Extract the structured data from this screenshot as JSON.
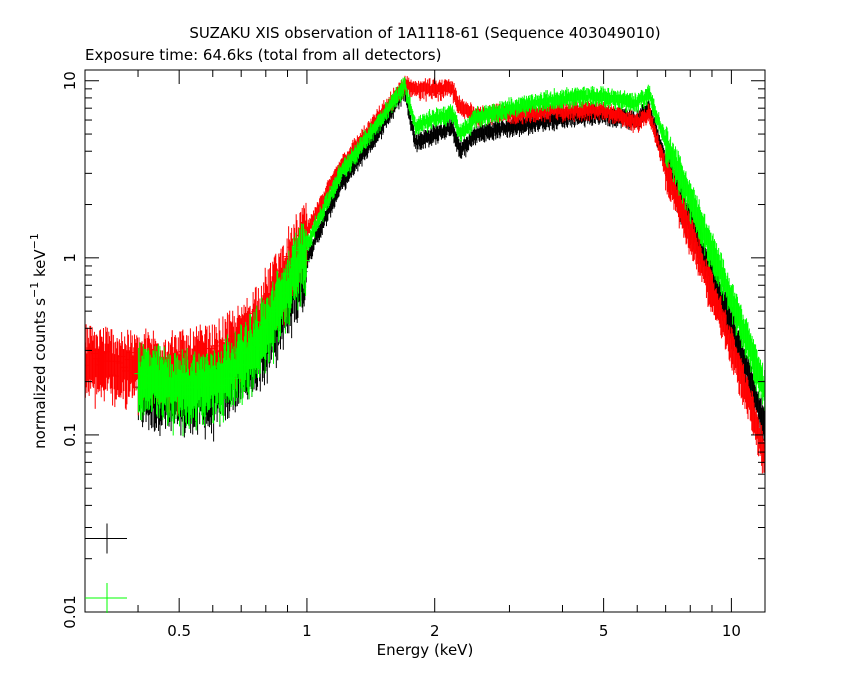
{
  "chart_data": {
    "type": "scatter",
    "title": "SUZAKU XIS observation of 1A1118-61 (Sequence 403049010)",
    "subtitle": "Exposure time: 64.6ks (total from all detectors)",
    "xlabel": "Energy (keV)",
    "ylabel_main": "normalized counts s",
    "ylabel_sup1": "−1",
    "ylabel_mid": " keV",
    "ylabel_sup2": "−1",
    "xscale": "log",
    "yscale": "log",
    "xlim": [
      0.3,
      12
    ],
    "ylim": [
      0.01,
      11.5
    ],
    "x_ticks": [
      {
        "value": 0.5,
        "label": "0.5"
      },
      {
        "value": 1,
        "label": "1"
      },
      {
        "value": 2,
        "label": "2"
      },
      {
        "value": 5,
        "label": "5"
      },
      {
        "value": 10,
        "label": "10"
      }
    ],
    "y_ticks": [
      {
        "value": 0.01,
        "label": "0.01"
      },
      {
        "value": 0.1,
        "label": "0.1"
      },
      {
        "value": 1,
        "label": "1"
      },
      {
        "value": 10,
        "label": "10"
      }
    ],
    "series": [
      {
        "color": "#000000",
        "x_start": 0.4,
        "x": [
          0.4,
          0.5,
          0.6,
          0.7,
          0.8,
          0.9,
          1.0,
          1.2,
          1.5,
          1.7,
          1.8,
          2.0,
          2.2,
          2.3,
          2.5,
          3.0,
          4.0,
          5.0,
          6.0,
          6.4,
          7.0,
          8.0,
          9.0,
          10.0,
          11.0,
          12.0
        ],
        "y": [
          0.2,
          0.17,
          0.18,
          0.25,
          0.35,
          0.6,
          1.0,
          2.6,
          5.5,
          9.0,
          4.5,
          5.0,
          5.5,
          4.0,
          5.0,
          5.5,
          6.2,
          6.5,
          6.0,
          7.0,
          3.5,
          1.6,
          0.8,
          0.42,
          0.22,
          0.11
        ]
      },
      {
        "color": "#ff0000",
        "x_start": 0.3,
        "x": [
          0.3,
          0.4,
          0.5,
          0.6,
          0.7,
          0.8,
          0.9,
          1.0,
          1.2,
          1.5,
          1.7,
          1.8,
          2.0,
          2.2,
          2.3,
          2.5,
          3.0,
          4.0,
          5.0,
          6.0,
          6.4,
          7.0,
          8.0,
          9.0,
          10.0,
          11.0,
          12.0
        ],
        "y": [
          0.27,
          0.25,
          0.25,
          0.27,
          0.35,
          0.55,
          0.9,
          1.4,
          3.3,
          6.5,
          9.5,
          9.0,
          9.0,
          9.0,
          7.0,
          6.5,
          6.5,
          6.8,
          6.8,
          5.8,
          6.5,
          3.2,
          1.4,
          0.65,
          0.32,
          0.16,
          0.075
        ]
      },
      {
        "color": "#00ff00",
        "x_start": 0.4,
        "x": [
          0.4,
          0.5,
          0.6,
          0.7,
          0.8,
          0.9,
          1.0,
          1.2,
          1.5,
          1.7,
          1.8,
          2.0,
          2.2,
          2.3,
          2.5,
          3.0,
          4.0,
          5.0,
          6.0,
          6.4,
          7.0,
          8.0,
          9.0,
          10.0,
          11.0,
          12.0
        ],
        "y": [
          0.22,
          0.19,
          0.2,
          0.27,
          0.4,
          0.7,
          1.2,
          3.0,
          6.2,
          9.5,
          5.5,
          6.2,
          6.5,
          5.0,
          6.2,
          7.0,
          8.0,
          8.2,
          7.5,
          8.5,
          4.5,
          2.2,
          1.1,
          0.6,
          0.33,
          0.18
        ]
      }
    ],
    "legend_crosses": [
      {
        "color": "#000000",
        "y": 0.026
      },
      {
        "color": "#00ff00",
        "y": 0.012
      }
    ]
  }
}
